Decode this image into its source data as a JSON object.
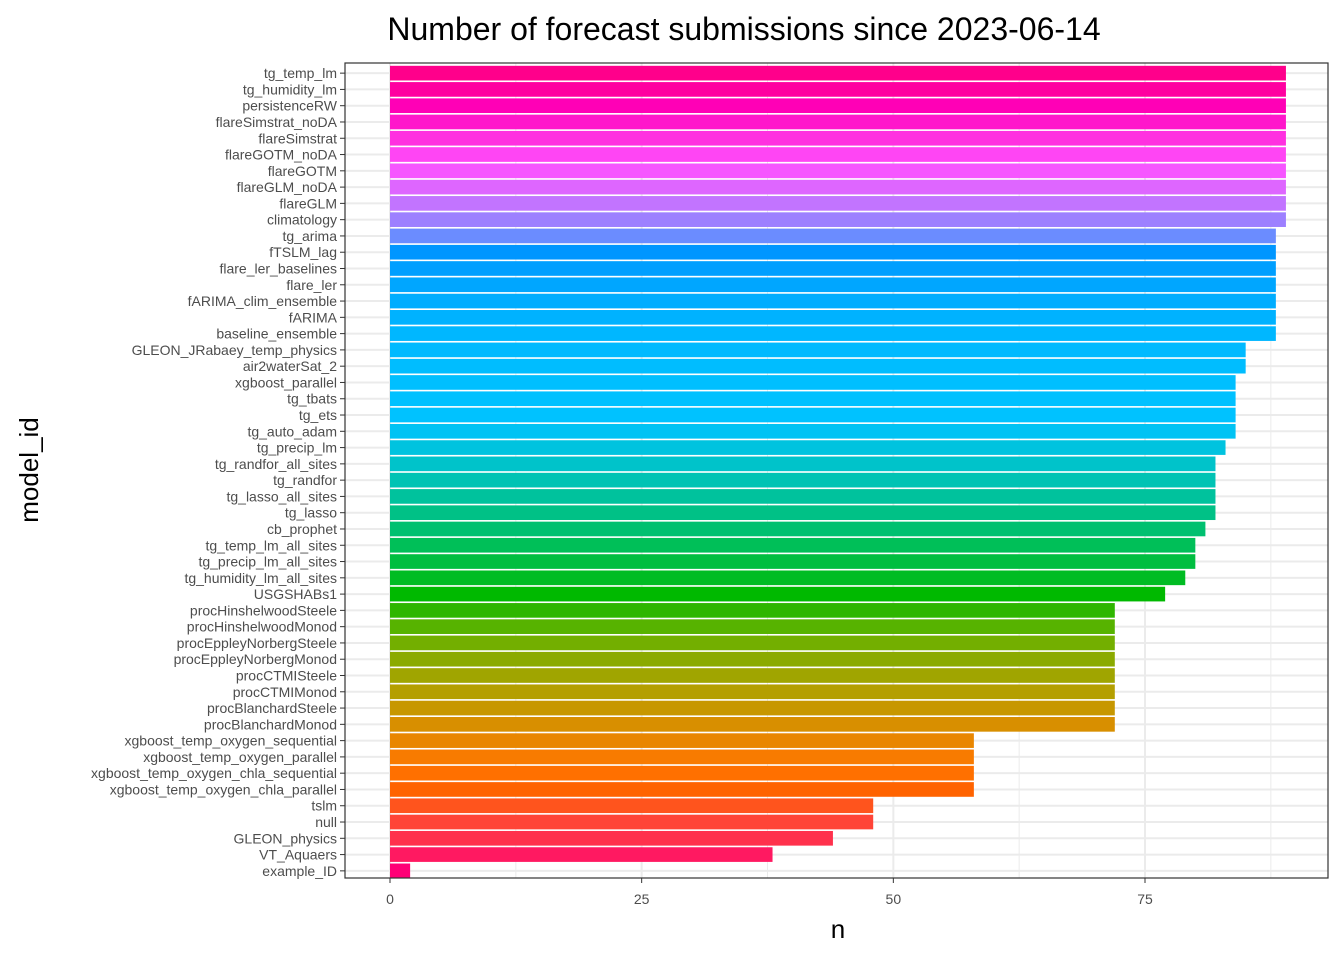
{
  "chart_data": {
    "type": "bar",
    "orientation": "horizontal",
    "title": "Number of forecast submissions since 2023-06-14",
    "xlabel": "n",
    "ylabel": "model_id",
    "xlim": [
      0,
      90
    ],
    "xticks": [
      0,
      25,
      50,
      75
    ],
    "grid": true,
    "legend": "none",
    "categories": [
      "tg_temp_lm",
      "tg_humidity_lm",
      "persistenceRW",
      "flareSimstrat_noDA",
      "flareSimstrat",
      "flareGOTM_noDA",
      "flareGOTM",
      "flareGLM_noDA",
      "flareGLM",
      "climatology",
      "tg_arima",
      "fTSLM_lag",
      "flare_ler_baselines",
      "flare_ler",
      "fARIMA_clim_ensemble",
      "fARIMA",
      "baseline_ensemble",
      "GLEON_JRabaey_temp_physics",
      "air2waterSat_2",
      "xgboost_parallel",
      "tg_tbats",
      "tg_ets",
      "tg_auto_adam",
      "tg_precip_lm",
      "tg_randfor_all_sites",
      "tg_randfor",
      "tg_lasso_all_sites",
      "tg_lasso",
      "cb_prophet",
      "tg_temp_lm_all_sites",
      "tg_precip_lm_all_sites",
      "tg_humidity_lm_all_sites",
      "USGSHABs1",
      "procHinshelwoodSteele",
      "procHinshelwoodMonod",
      "procEppleyNorbergSteele",
      "procEppleyNorbergMonod",
      "procCTMISteele",
      "procCTMIMonod",
      "procBlanchardSteele",
      "procBlanchardMonod",
      "xgboost_temp_oxygen_sequential",
      "xgboost_temp_oxygen_parallel",
      "xgboost_temp_oxygen_chla_sequential",
      "xgboost_temp_oxygen_chla_parallel",
      "tslm",
      "null",
      "GLEON_physics",
      "VT_Aquaers",
      "example_ID"
    ],
    "values": [
      89,
      89,
      89,
      89,
      89,
      89,
      89,
      89,
      89,
      89,
      88,
      88,
      88,
      88,
      88,
      88,
      88,
      85,
      85,
      84,
      84,
      84,
      84,
      83,
      82,
      82,
      82,
      82,
      81,
      80,
      80,
      79,
      77,
      72,
      72,
      72,
      72,
      72,
      72,
      72,
      72,
      58,
      58,
      58,
      58,
      48,
      48,
      44,
      38,
      2
    ]
  }
}
